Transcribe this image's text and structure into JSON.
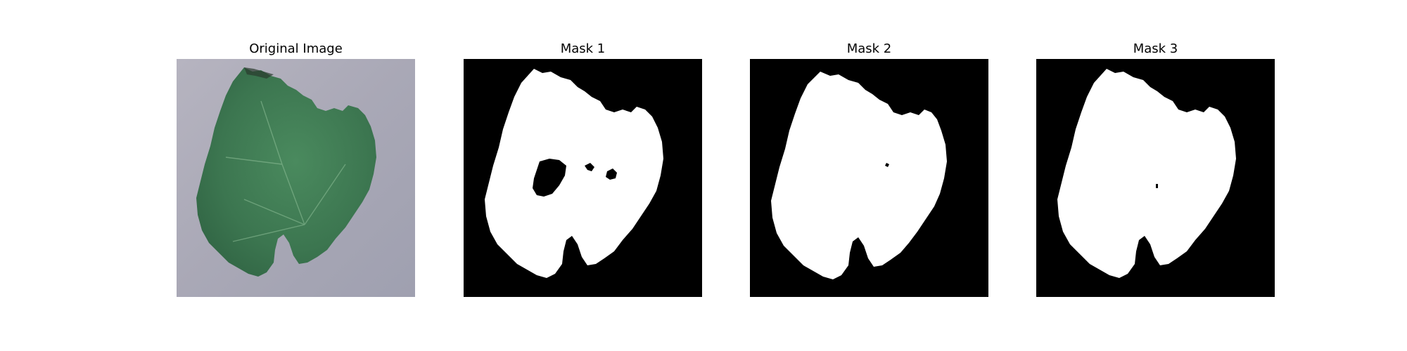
{
  "figure": {
    "panels": [
      {
        "title": "Original Image"
      },
      {
        "title": "Mask 1"
      },
      {
        "title": "Mask 2"
      },
      {
        "title": "Mask 3"
      }
    ]
  },
  "colors": {
    "background": "#ffffff",
    "mask_background": "#000000",
    "mask_foreground": "#ffffff",
    "leaf": "#3f7b52",
    "photo_background": "#a9a9b6"
  }
}
